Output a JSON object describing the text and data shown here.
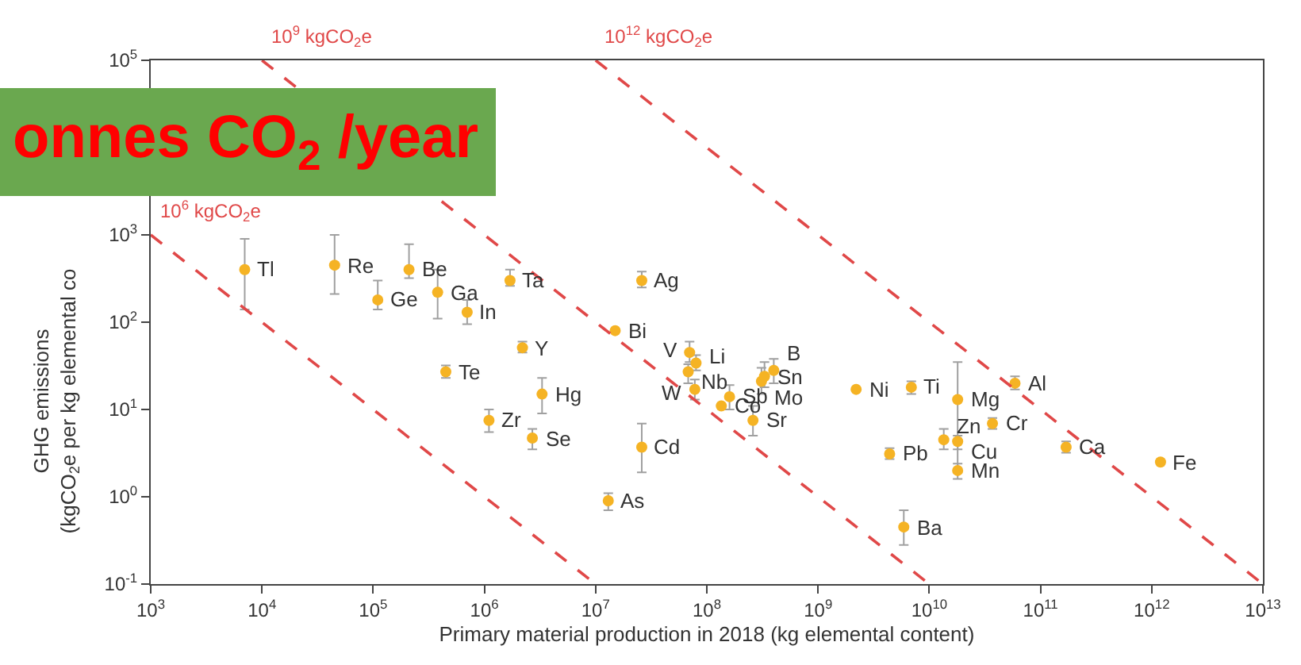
{
  "chart_data": {
    "type": "scatter",
    "log": "xy",
    "marker": "circle",
    "xlabel": "Primary material production in 2018 (kg elemental content)",
    "ylabel": "GHG emissions\n(kgCO$_{2}$e per kg elemental co",
    "xlim": [
      1000,
      10000000000000
    ],
    "ylim": [
      0.1,
      100000
    ],
    "xticks": [
      {
        "value": 1000,
        "label": "10$^{3}$"
      },
      {
        "value": 10000,
        "label": "10$^{4}$"
      },
      {
        "value": 100000,
        "label": "10$^{5}$"
      },
      {
        "value": 1000000,
        "label": "10$^{6}$"
      },
      {
        "value": 10000000,
        "label": "10$^{7}$"
      },
      {
        "value": 100000000,
        "label": "10$^{8}$"
      },
      {
        "value": 1000000000,
        "label": "10$^{9}$"
      },
      {
        "value": 10000000000,
        "label": "10$^{10}$"
      },
      {
        "value": 100000000000,
        "label": "10$^{11}$"
      },
      {
        "value": 1000000000000,
        "label": "10$^{12}$"
      },
      {
        "value": 10000000000000,
        "label": "10$^{13}$"
      }
    ],
    "yticks": [
      {
        "value": 0.1,
        "label": "10$^{-1}$"
      },
      {
        "value": 1,
        "label": "10$^{0}$"
      },
      {
        "value": 10,
        "label": "10$^{1}$"
      },
      {
        "value": 100,
        "label": "10$^{2}$"
      },
      {
        "value": 1000,
        "label": "10$^{3}$"
      },
      {
        "value": 10000,
        "label": null
      },
      {
        "value": 100000,
        "label": "10$^{5}$"
      }
    ],
    "series": [
      {
        "color": "#f5b324",
        "x": [
          7000,
          45000,
          210000,
          110000,
          380000,
          700000,
          1700000,
          26000000,
          15000000,
          2200000,
          450000,
          3300000,
          1100000,
          2700000,
          26000000,
          13000000,
          70000000,
          80000000,
          68000000,
          78000000,
          135000000,
          160000000,
          310000000,
          330000000,
          400000000,
          260000000,
          2200000000,
          6900000000,
          18000000000,
          59000000000,
          37000000000,
          13500000000,
          18000000000,
          4400000000,
          18000000000,
          170000000000,
          1200000000000,
          5900000000
        ],
        "values": [
          400,
          450,
          400,
          180,
          220,
          130,
          300,
          300,
          80,
          51,
          27,
          15,
          7.5,
          4.7,
          3.7,
          0.9,
          45,
          34,
          27,
          17,
          11,
          14,
          21,
          24,
          28,
          7.5,
          17,
          18,
          13,
          20,
          6.9,
          4.5,
          4.3,
          3.1,
          2,
          3.7,
          2.5,
          0.45
        ],
        "errors": [
          [
            140,
            900
          ],
          [
            210,
            1000
          ],
          [
            320,
            780
          ],
          [
            140,
            300
          ],
          [
            110,
            400
          ],
          [
            95,
            180
          ],
          [
            260,
            400
          ],
          [
            250,
            380
          ],
          null,
          [
            45,
            60
          ],
          [
            23,
            32
          ],
          [
            9,
            23
          ],
          [
            5.5,
            10
          ],
          [
            3.5,
            6
          ],
          [
            1.9,
            6.9
          ],
          [
            0.7,
            1.1
          ],
          [
            35,
            60
          ],
          [
            28,
            42
          ],
          [
            20,
            33
          ],
          [
            13,
            22
          ],
          null,
          [
            10,
            19
          ],
          [
            15,
            30
          ],
          [
            18,
            35
          ],
          [
            20,
            38
          ],
          [
            5,
            11
          ],
          null,
          [
            15,
            21
          ],
          [
            2,
            35
          ],
          [
            17,
            24
          ],
          [
            6,
            8
          ],
          [
            3.5,
            6
          ],
          [
            3.5,
            5
          ],
          [
            2.7,
            3.6
          ],
          [
            1.6,
            2.4
          ],
          [
            3.2,
            4.3
          ],
          null,
          [
            0.28,
            0.7
          ]
        ]
      },
      {
        "type": "line",
        "color": "#e04848",
        "line_style": "dashed",
        "marker": "none",
        "x": [
          1000,
          10000000
        ],
        "values": [
          1000,
          0.1
        ]
      },
      {
        "type": "line",
        "color": "#e04848",
        "line_style": "dashed",
        "marker": "none",
        "x": [
          10000,
          10000000000
        ],
        "values": [
          100000,
          0.1
        ]
      },
      {
        "type": "line",
        "color": "#e04848",
        "line_style": "dashed",
        "marker": "none",
        "x": [
          10000000,
          10000000000000
        ],
        "values": [
          100000,
          0.1
        ]
      }
    ],
    "annotations": [
      {
        "text": "Tl",
        "x": 7000,
        "y": 400
      },
      {
        "text": "Re",
        "x": 45000,
        "y": 450
      },
      {
        "text": "Be",
        "x": 210000,
        "y": 400
      },
      {
        "text": "Ge",
        "x": 110000,
        "y": 180
      },
      {
        "text": "Ga",
        "x": 380000,
        "y": 220
      },
      {
        "text": "In",
        "x": 700000,
        "y": 130
      },
      {
        "text": "Ta",
        "x": 1700000,
        "y": 300
      },
      {
        "text": "Ag",
        "x": 26000000,
        "y": 300
      },
      {
        "text": "Bi",
        "x": 15000000,
        "y": 80
      },
      {
        "text": "Y",
        "x": 2200000,
        "y": 51
      },
      {
        "text": "Te",
        "x": 450000,
        "y": 27
      },
      {
        "text": "Hg",
        "x": 3300000,
        "y": 15
      },
      {
        "text": "Zr",
        "x": 1100000,
        "y": 7.5
      },
      {
        "text": "Se",
        "x": 2700000,
        "y": 4.7
      },
      {
        "text": "Cd",
        "x": 26000000,
        "y": 3.7
      },
      {
        "text": "As",
        "x": 13000000,
        "y": 0.9
      },
      {
        "text": "V",
        "x": 70000000,
        "y": 45
      },
      {
        "text": "Li",
        "x": 80000000,
        "y": 34
      },
      {
        "text": "Nb",
        "x": 68000000,
        "y": 27
      },
      {
        "text": "W",
        "x": 78000000,
        "y": 17
      },
      {
        "text": "Co",
        "x": 135000000,
        "y": 11
      },
      {
        "text": "Sb",
        "x": 160000000,
        "y": 14
      },
      {
        "text": "Mo",
        "x": 310000000,
        "y": 21
      },
      {
        "text": "Sn",
        "x": 330000000,
        "y": 24
      },
      {
        "text": "B",
        "x": 400000000,
        "y": 28
      },
      {
        "text": "Sr",
        "x": 260000000,
        "y": 7.5
      },
      {
        "text": "Ni",
        "x": 2200000000,
        "y": 17
      },
      {
        "text": "Ti",
        "x": 6900000000,
        "y": 18
      },
      {
        "text": "Mg",
        "x": 18000000000,
        "y": 13
      },
      {
        "text": "Al",
        "x": 59000000000,
        "y": 20
      },
      {
        "text": "Cr",
        "x": 37000000000,
        "y": 6.9
      },
      {
        "text": "Zn",
        "x": 13500000000,
        "y": 4.5
      },
      {
        "text": "Cu",
        "x": 18000000000,
        "y": 4.3
      },
      {
        "text": "Pb",
        "x": 4400000000,
        "y": 3.1
      },
      {
        "text": "Mn",
        "x": 18000000000,
        "y": 2
      },
      {
        "text": "Ca",
        "x": 170000000000,
        "y": 3.7
      },
      {
        "text": "Fe",
        "x": 1200000000000,
        "y": 2.5
      },
      {
        "text": "Ba",
        "x": 5900000000,
        "y": 0.45
      },
      {
        "text": "10$^{6}$ kgCO$_{2}$e",
        "x": 1000,
        "y": 1000
      },
      {
        "text": "10$^{9}$ kgCO$_{2}$e",
        "x": 10000,
        "y": 100000
      },
      {
        "text": "10$^{12}$ kgCO$_{2}$e",
        "x": 10000000,
        "y": 100000
      },
      "onnes CO$_{2}$ /year"
    ]
  }
}
